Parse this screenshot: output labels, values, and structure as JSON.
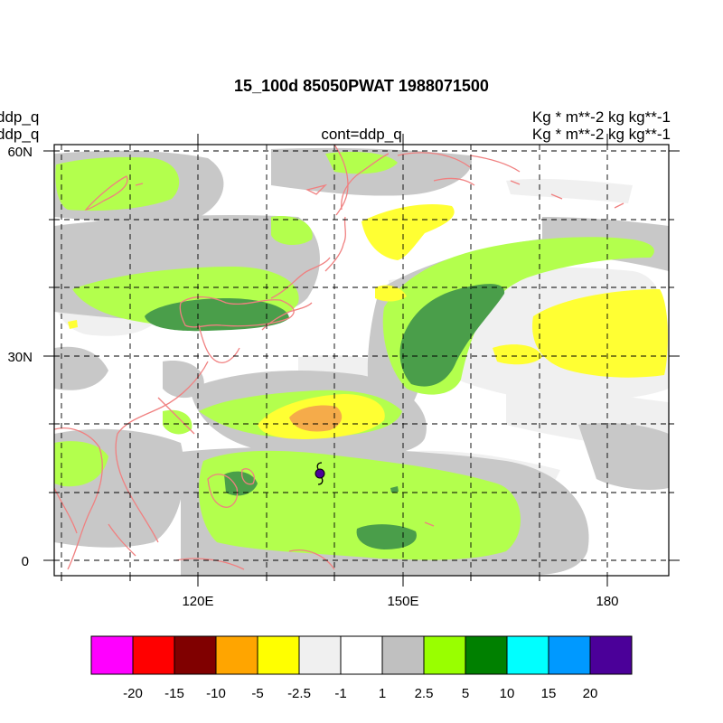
{
  "title": "15_100d 85050PWAT  1988071500",
  "left_labels": [
    "ddp_q",
    "ddp_q"
  ],
  "center_label": "cont=ddp_q",
  "right_labels": [
    "Kg  * m**-2 kg kg**-1",
    "Kg  * m**-2 kg kg**-1"
  ],
  "lat_ticks": [
    {
      "label": "60N",
      "lat": 60
    },
    {
      "label": "30N",
      "lat": 30
    },
    {
      "label": "0",
      "lat": 0
    }
  ],
  "lon_ticks": [
    {
      "label": "120E",
      "lon": 120
    },
    {
      "label": "150E",
      "lon": 150
    },
    {
      "label": "180",
      "lon": 180
    }
  ],
  "map_extent": {
    "lon_min": 100,
    "lon_max": 189,
    "lat_min": -2,
    "lat_max": 61
  },
  "colorbar": {
    "colors": [
      "#ff00ff",
      "#ff0000",
      "#800000",
      "#ffa500",
      "#ffff00",
      "#f0f0f0",
      "#ffffff",
      "#c0c0c0",
      "#99ff00",
      "#008000",
      "#00ffff",
      "#0099ff",
      "#4b0099"
    ],
    "labels": [
      "-20",
      "-15",
      "-10",
      "-5",
      "-2.5",
      "-1",
      "1",
      "2.5",
      "5",
      "10",
      "15",
      "20"
    ]
  },
  "storm_marker": {
    "lon": 138,
    "lat": 13,
    "icon": "typhoon-icon"
  }
}
